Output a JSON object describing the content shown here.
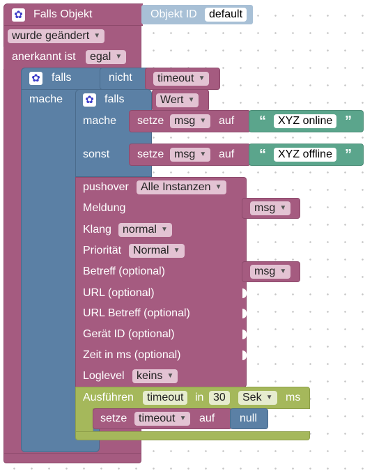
{
  "trigger": {
    "title": "Falls Objekt",
    "object_id_label": "Objekt ID",
    "object_id_value": "default",
    "changed_option": "wurde geändert",
    "ack_label": "anerkannt ist",
    "ack_option": "egal"
  },
  "if_outer": {
    "falls": "falls",
    "nicht": "nicht",
    "timeout_var": "timeout",
    "mache": "mache"
  },
  "if_inner": {
    "falls": "falls",
    "cond_var": "Wert",
    "mache": "mache",
    "sonst": "sonst",
    "set1": {
      "setze": "setze",
      "var": "msg",
      "auf": "auf",
      "text": "XYZ online"
    },
    "set2": {
      "setze": "setze",
      "var": "msg",
      "auf": "auf",
      "text": "XYZ offline"
    }
  },
  "pushover": {
    "label": "pushover",
    "instance": "Alle Instanzen",
    "meldung": "Meldung",
    "meldung_var": "msg",
    "klang": "Klang",
    "klang_option": "normal",
    "prioritaet": "Priorität",
    "prioritaet_option": "Normal",
    "betreff": "Betreff (optional)",
    "betreff_var": "msg",
    "url": "URL (optional)",
    "url_betreff": "URL Betreff (optional)",
    "geraet": "Gerät ID (optional)",
    "zeit": "Zeit in ms (optional)",
    "loglevel": "Loglevel",
    "loglevel_option": "keins"
  },
  "timeout_block": {
    "ausfuehren": "Ausführen",
    "var": "timeout",
    "in": "in",
    "value": "30",
    "unit_option": "Sek",
    "ms": "ms",
    "setze": "setze",
    "set_var": "timeout",
    "auf": "auf",
    "null": "null"
  },
  "colors": {
    "trigger": "#A55B80",
    "logic": "#5B80A5",
    "text": "#5BA58C",
    "timeout": "#A5B85B"
  }
}
